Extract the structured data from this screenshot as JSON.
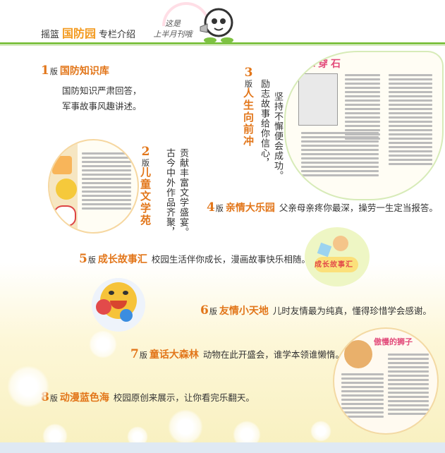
{
  "header": {
    "brand_prefix": "摇篮",
    "brand_highlight": "国防园",
    "brand_suffix": "专栏介绍",
    "note_line1": "这是",
    "note_line2": "上半月刊哦"
  },
  "sections": {
    "s1": {
      "num": "1",
      "ban": "版",
      "title": "国防知识库",
      "line1": "国防知识严肃回答，",
      "line2": "军事故事风趣讲述。"
    },
    "s2": {
      "num": "2",
      "ban": "版",
      "title": "儿童文学苑",
      "line1": "贡献丰富文学盛宴。",
      "line2": "古今中外作品齐聚，"
    },
    "s3": {
      "num": "3",
      "ban": "版",
      "title": "人生向前冲",
      "line1": "坚持不懈便会成功。",
      "line2": "励志故事给你信心，"
    },
    "s4": {
      "num": "4",
      "ban": "版",
      "title": "亲情大乐园",
      "desc": "父亲母亲疼你最深，操劳一生定当报答。"
    },
    "s5": {
      "num": "5",
      "ban": "版",
      "title": "成长故事汇",
      "desc": "校园生活伴你成长，漫画故事快乐相随。"
    },
    "s6": {
      "num": "6",
      "ban": "版",
      "title": "友情小天地",
      "desc": "儿时友情最为纯真，懂得珍惜学会感谢。"
    },
    "s7": {
      "num": "7",
      "ban": "版",
      "title": "童话大森林",
      "desc": "动物在此开盛会，谁学本领谁懒惰。"
    },
    "s8": {
      "num": "8",
      "ban": "版",
      "title": "动漫蓝色海",
      "desc": "校园原创来展示，让你看完乐翻天。"
    }
  },
  "thumbnails": {
    "t3_title": "滴水穿石",
    "t5_title": "成长故事汇",
    "t7_title": "傲慢的狮子"
  },
  "colors": {
    "accent": "#e2761a",
    "green_bar": "#7ec242",
    "highlight": "#f39a1f"
  }
}
